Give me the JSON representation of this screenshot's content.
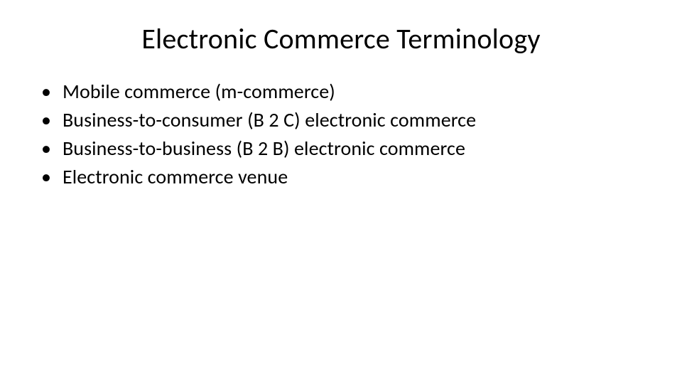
{
  "slide": {
    "title": "Electronic Commerce Terminology",
    "title_fontsize": 40,
    "title_color": "#000000",
    "title_align": "center",
    "background_color": "#ffffff",
    "bullets": [
      {
        "label": "Mobile commerce (m-commerce)"
      },
      {
        "label": "Business-to-consumer (B 2 C) electronic commerce"
      },
      {
        "label": "Business-to-business (B 2 B) electronic commerce"
      },
      {
        "label": "Electronic commerce venue"
      }
    ],
    "bullet_char": "•",
    "bullet_fontsize": 28,
    "bullet_color": "#000000",
    "body_fontsize": 28,
    "body_color": "#000000",
    "font_family": "Calibri"
  }
}
